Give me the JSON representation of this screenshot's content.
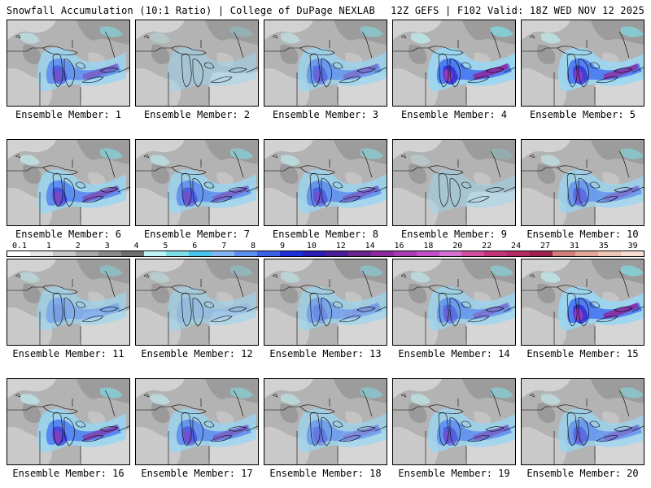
{
  "header": {
    "left": "Snowfall Accumulation (10:1 Ratio) | College of DuPage NEXLAB",
    "right": "12Z GEFS | F102 Valid: 18Z WED NOV 12 2025"
  },
  "colorbar": {
    "ticks": [
      "0.1",
      "1",
      "2",
      "3",
      "4",
      "5",
      "6",
      "7",
      "8",
      "9",
      "10",
      "12",
      "14",
      "16",
      "18",
      "20",
      "22",
      "24",
      "27",
      "31",
      "35",
      "39"
    ],
    "colors": [
      "#ffffff",
      "#e6e6e6",
      "#c8c8c8",
      "#a8a8a8",
      "#8a8a8a",
      "#6e6e6e",
      "#bff3f5",
      "#80dde8",
      "#4cc3e8",
      "#86b6f2",
      "#5c8ff0",
      "#3a63e6",
      "#1d2fd8",
      "#2a1cb4",
      "#4b1b98",
      "#6a238f",
      "#8c2c9d",
      "#a83db0",
      "#c24fc6",
      "#d66fd2",
      "#cf4f9e",
      "#c13478",
      "#b52a62",
      "#9e2150",
      "#cf7f77",
      "#e3a596",
      "#efc3b6",
      "#f7dfd6"
    ]
  },
  "members": [
    {
      "label": "Ensemble Member: 1",
      "intensity": 0.75
    },
    {
      "label": "Ensemble Member: 2",
      "intensity": 0.25
    },
    {
      "label": "Ensemble Member: 3",
      "intensity": 0.7
    },
    {
      "label": "Ensemble Member: 4",
      "intensity": 0.95
    },
    {
      "label": "Ensemble Member: 5",
      "intensity": 0.9
    },
    {
      "label": "Ensemble Member: 6",
      "intensity": 0.8
    },
    {
      "label": "Ensemble Member: 7",
      "intensity": 0.75
    },
    {
      "label": "Ensemble Member: 8",
      "intensity": 0.75
    },
    {
      "label": "Ensemble Member: 9",
      "intensity": 0.2
    },
    {
      "label": "Ensemble Member: 10",
      "intensity": 0.7
    },
    {
      "label": "Ensemble Member: 11",
      "intensity": 0.55
    },
    {
      "label": "Ensemble Member: 12",
      "intensity": 0.4
    },
    {
      "label": "Ensemble Member: 13",
      "intensity": 0.6
    },
    {
      "label": "Ensemble Member: 14",
      "intensity": 0.7
    },
    {
      "label": "Ensemble Member: 15",
      "intensity": 0.95
    },
    {
      "label": "Ensemble Member: 16",
      "intensity": 0.85
    },
    {
      "label": "Ensemble Member: 17",
      "intensity": 0.75
    },
    {
      "label": "Ensemble Member: 18",
      "intensity": 0.65
    },
    {
      "label": "Ensemble Member: 19",
      "intensity": 0.75
    },
    {
      "label": "Ensemble Member: 20",
      "intensity": 0.7
    }
  ]
}
